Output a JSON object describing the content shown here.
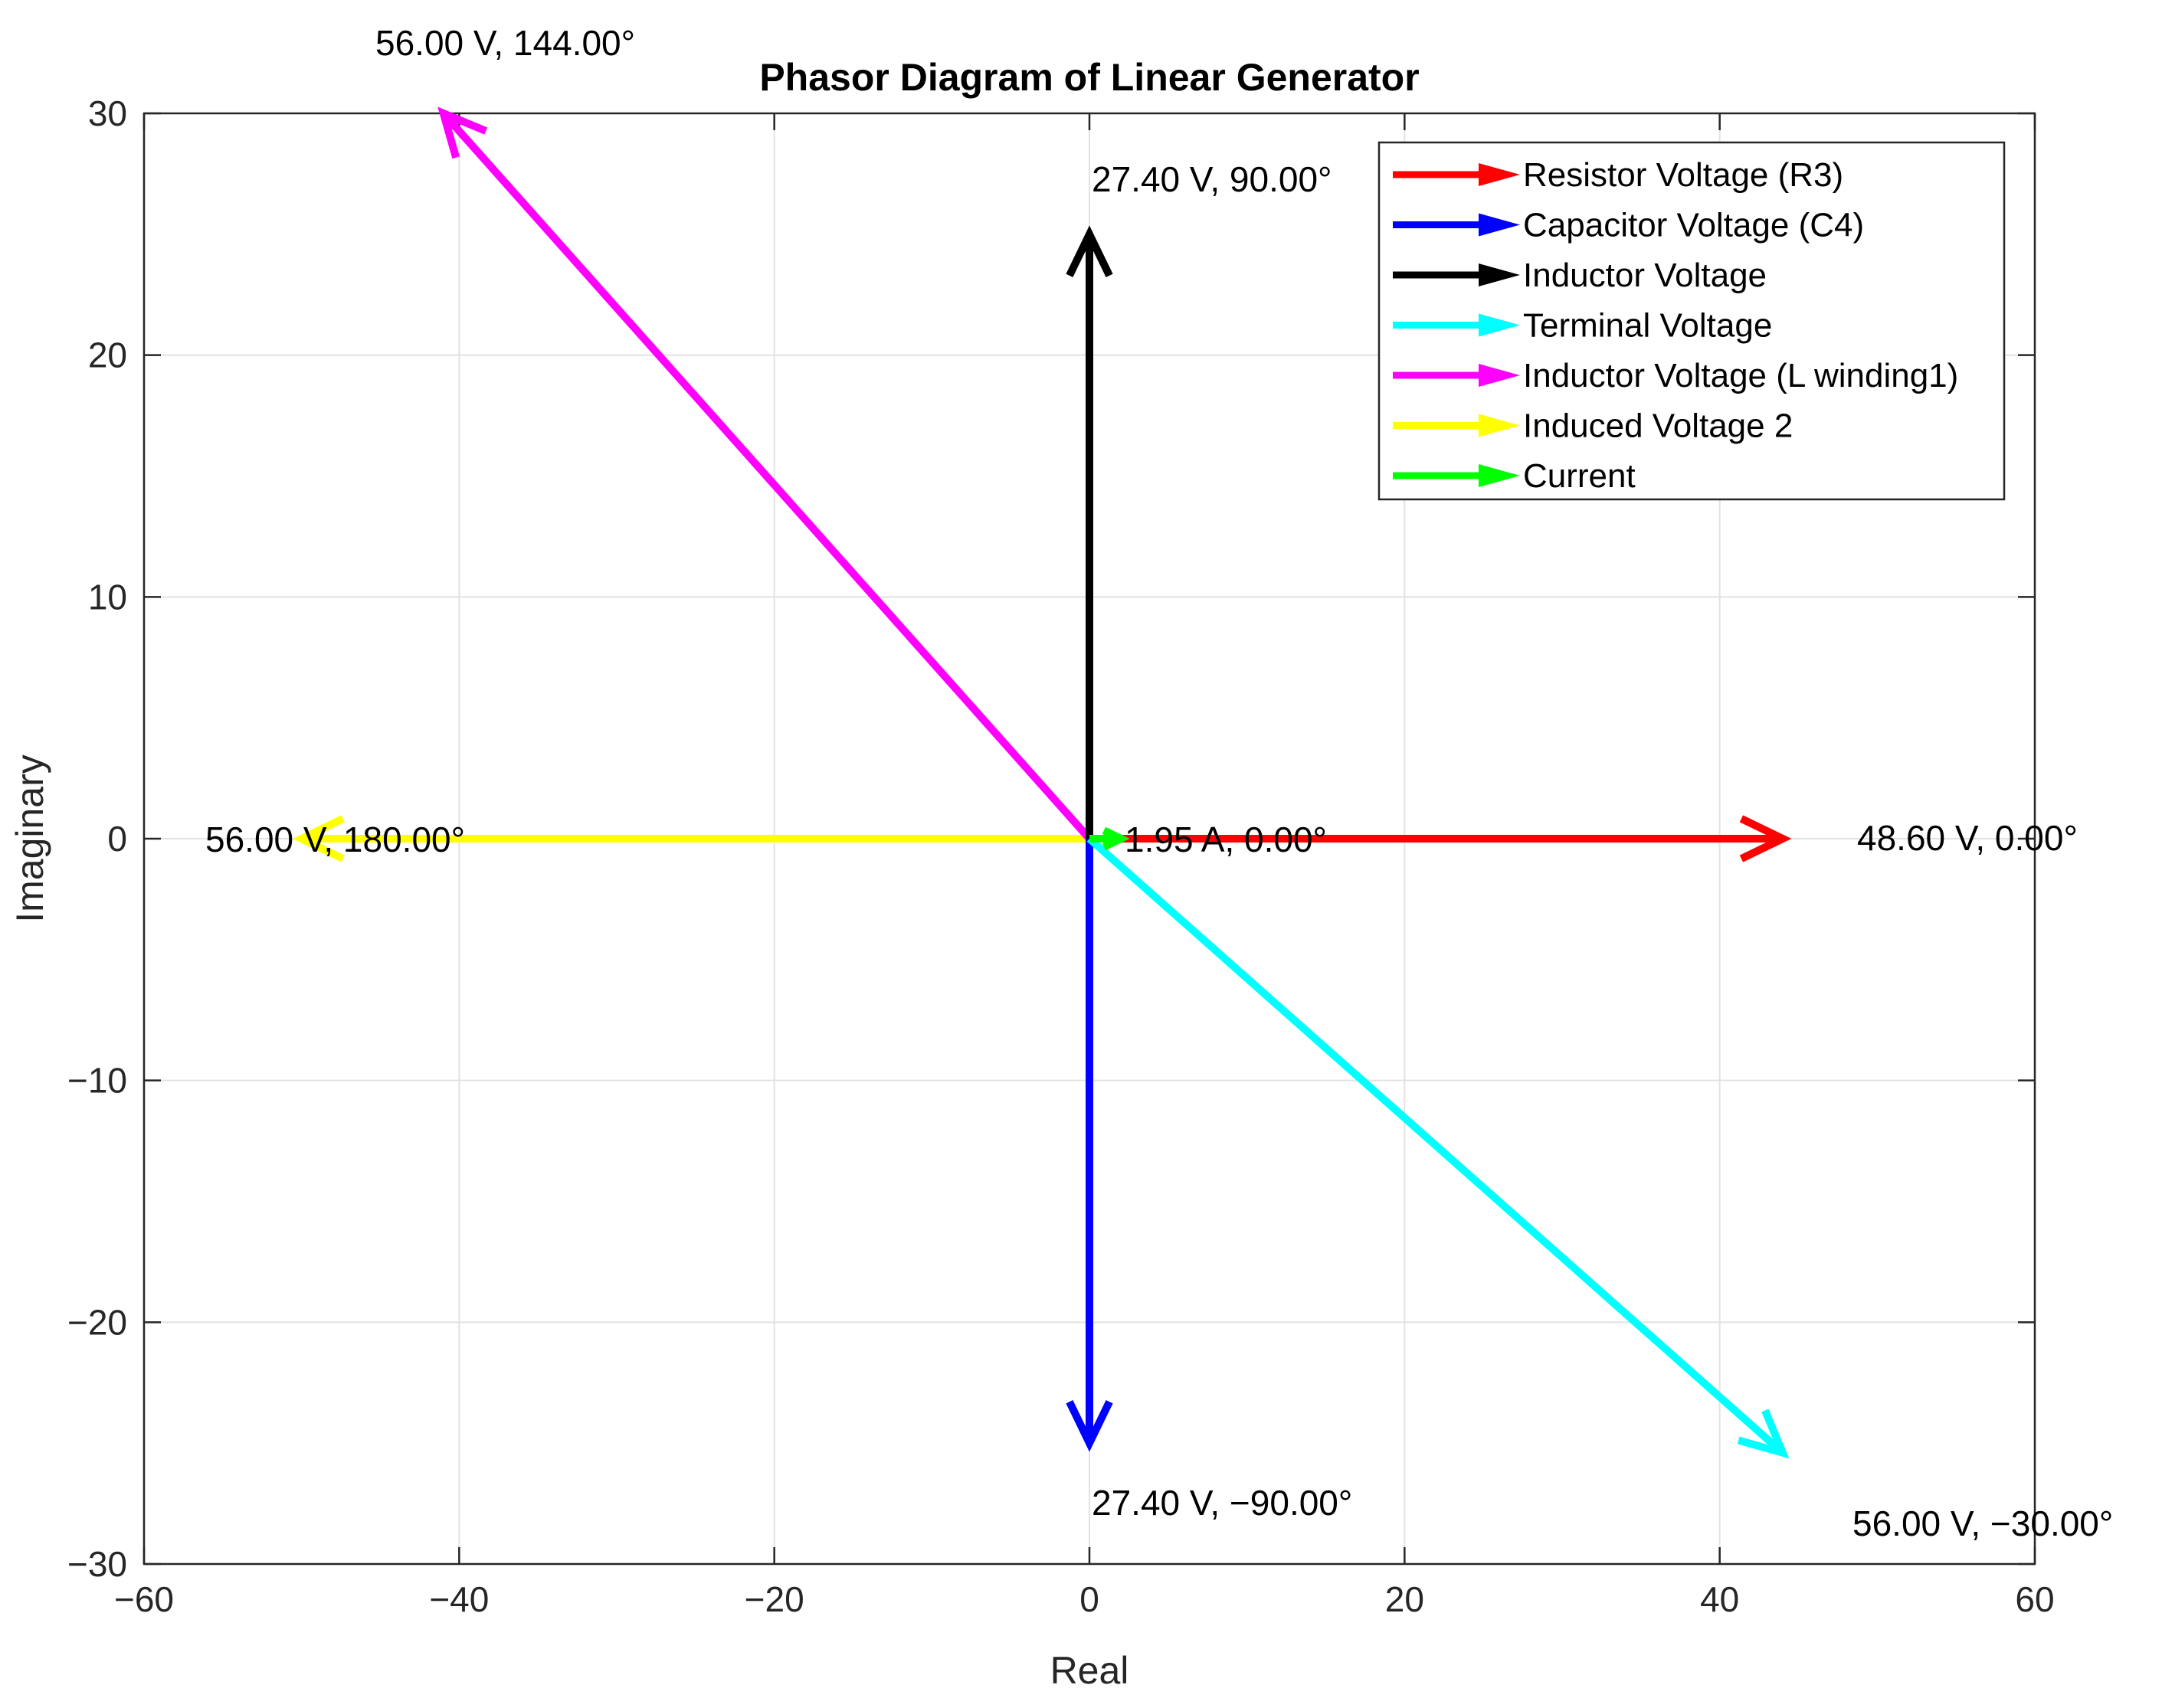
{
  "chart_data": {
    "type": "phasor",
    "title": "Phasor Diagram of Linear Generator",
    "xlabel": "Real",
    "ylabel": "Imaginary",
    "xlim": [
      -60,
      60
    ],
    "ylim": [
      -30,
      30
    ],
    "xticks": [
      -60,
      -40,
      -20,
      0,
      20,
      40,
      60
    ],
    "yticks": [
      -30,
      -20,
      -10,
      0,
      10,
      20,
      30
    ],
    "xtick_labels": [
      "−60",
      "−40",
      "−20",
      "0",
      "20",
      "40",
      "60"
    ],
    "ytick_labels": [
      "−30",
      "−20",
      "−10",
      "0",
      "10",
      "20",
      "30"
    ],
    "grid": true,
    "legend_position": "top-right",
    "series": [
      {
        "name": "Resistor Voltage (R3)",
        "color": "#ff0000",
        "x": 44,
        "y": 0,
        "label": "48.60 V, 0.00°"
      },
      {
        "name": "Capacitor Voltage (C4)",
        "color": "#0000ff",
        "x": 0,
        "y": -25,
        "label": "27.40 V, −90.00°"
      },
      {
        "name": "Inductor Voltage",
        "color": "#000000",
        "x": 0,
        "y": 25,
        "label": "27.40 V, 90.00°"
      },
      {
        "name": "Terminal Voltage",
        "color": "#00ffff",
        "x": 44,
        "y": -25.4,
        "label": "56.00 V, −30.00°"
      },
      {
        "name": "Inductor Voltage (L winding1)",
        "color": "#ff00ff",
        "x": -41,
        "y": 30,
        "label": "56.00 V, 144.00°"
      },
      {
        "name": "Induced Voltage 2",
        "color": "#ffff00",
        "x": -50,
        "y": 0,
        "label": "56.00 V, 180.00°"
      },
      {
        "name": "Current",
        "color": "#00ff00",
        "x": 2,
        "y": 0,
        "label": "1.95 A, 0.00°"
      }
    ]
  }
}
